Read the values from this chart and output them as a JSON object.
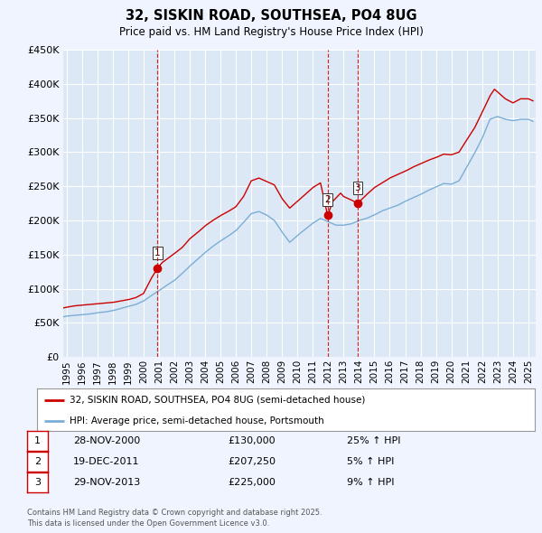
{
  "title": "32, SISKIN ROAD, SOUTHSEA, PO4 8UG",
  "subtitle": "Price paid vs. HM Land Registry's House Price Index (HPI)",
  "legend_line1": "32, SISKIN ROAD, SOUTHSEA, PO4 8UG (semi-detached house)",
  "legend_line2": "HPI: Average price, semi-detached house, Portsmouth",
  "footnote1": "Contains HM Land Registry data © Crown copyright and database right 2025.",
  "footnote2": "This data is licensed under the Open Government Licence v3.0.",
  "transactions": [
    {
      "num": 1,
      "date": "28-NOV-2000",
      "year": 2000.91,
      "price": 130000,
      "price_str": "£130,000",
      "pct": "25% ↑ HPI"
    },
    {
      "num": 2,
      "date": "19-DEC-2011",
      "year": 2011.96,
      "price": 207250,
      "price_str": "£207,250",
      "pct": "5% ↑ HPI"
    },
    {
      "num": 3,
      "date": "29-NOV-2013",
      "year": 2013.91,
      "price": 225000,
      "price_str": "£225,000",
      "pct": "9% ↑ HPI"
    }
  ],
  "red_line_color": "#cc0000",
  "blue_line_color": "#7aaed6",
  "vline_color": "#cc0000",
  "dot_color": "#cc0000",
  "background_color": "#f0f4ff",
  "plot_bg_color": "#dce8f5",
  "grid_color": "#ffffff",
  "ylim": [
    0,
    450000
  ],
  "xlim_start": 1994.8,
  "xlim_end": 2025.5,
  "ytick_values": [
    0,
    50000,
    100000,
    150000,
    200000,
    250000,
    300000,
    350000,
    400000,
    450000
  ],
  "ytick_labels": [
    "£0",
    "£50K",
    "£100K",
    "£150K",
    "£200K",
    "£250K",
    "£300K",
    "£350K",
    "£400K",
    "£450K"
  ],
  "xtick_years": [
    1995,
    1996,
    1997,
    1998,
    1999,
    2000,
    2001,
    2002,
    2003,
    2004,
    2005,
    2006,
    2007,
    2008,
    2009,
    2010,
    2011,
    2012,
    2013,
    2014,
    2015,
    2016,
    2017,
    2018,
    2019,
    2020,
    2021,
    2022,
    2023,
    2024,
    2025
  ]
}
